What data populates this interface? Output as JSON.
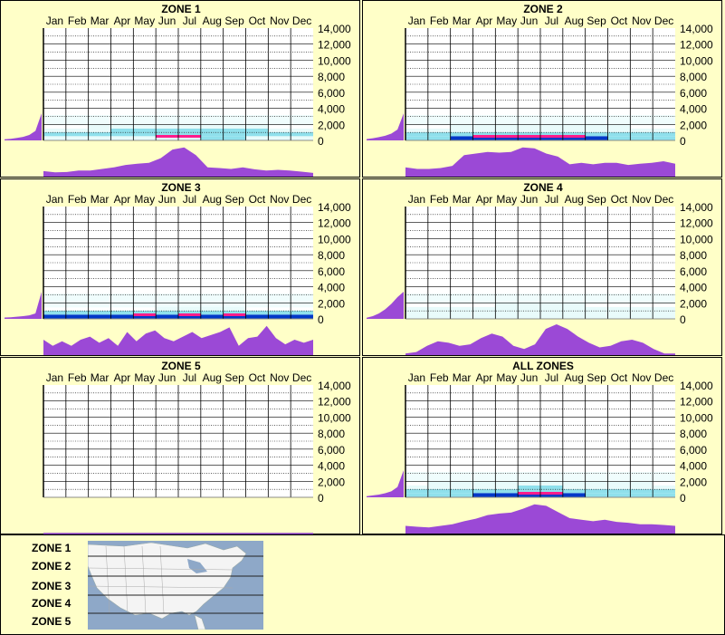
{
  "colors": {
    "background": "#ffffc8",
    "profile_fill": "#9b49d6",
    "grid": "#000000",
    "heat_low": "#e6fbfb",
    "heat_mid": "#8fe0ec",
    "heat_high": "#0038c8",
    "heat_peak": "#ff1c8c",
    "map_water": "#8ea8c8",
    "map_land": "#f4f4f4"
  },
  "chart_data": [
    {
      "type": "heatmap",
      "title": "ZONE 1",
      "categories": [
        "Jan",
        "Feb",
        "Mar",
        "Apr",
        "May",
        "Jun",
        "Jul",
        "Aug",
        "Sep",
        "Oct",
        "Nov",
        "Dec"
      ],
      "y_ticks": [
        "14,000",
        "12,000",
        "10,000",
        "8,000",
        "6,000",
        "4,000",
        "2,000",
        "0"
      ],
      "ylim": [
        0,
        14000
      ],
      "elevation_distribution": [
        0.04,
        0.06,
        0.09,
        0.13,
        0.2,
        0.35,
        1.0
      ],
      "seasonal_profile": [
        0.18,
        0.14,
        0.15,
        0.2,
        0.2,
        0.25,
        0.3,
        0.38,
        0.42,
        0.45,
        0.6,
        0.88,
        0.95,
        0.7,
        0.3,
        0.28,
        0.25,
        0.3,
        0.24,
        0.2,
        0.22,
        0.2,
        0.16,
        0.12
      ],
      "heat": {
        "layers": [
          [
            1,
            1,
            1,
            1,
            1,
            1,
            1,
            2,
            2,
            1,
            1,
            1
          ],
          [
            2,
            2,
            2,
            2,
            2,
            2,
            2,
            2,
            2,
            2,
            2,
            2
          ],
          [
            1,
            1,
            1,
            2,
            2,
            2,
            2,
            2,
            2,
            2,
            1,
            1
          ],
          [
            0,
            0,
            1,
            1,
            1,
            1,
            1,
            1,
            1,
            1,
            0,
            0
          ]
        ],
        "peak_months": [
          5,
          6
        ]
      }
    },
    {
      "type": "heatmap",
      "title": "ZONE 2",
      "categories": [
        "Jan",
        "Feb",
        "Mar",
        "Apr",
        "May",
        "Jun",
        "Jul",
        "Aug",
        "Sep",
        "Oct",
        "Nov",
        "Dec"
      ],
      "y_ticks": [
        "14,000",
        "12,000",
        "10,000",
        "8,000",
        "6,000",
        "4,000",
        "2,000",
        "0"
      ],
      "ylim": [
        0,
        14000
      ],
      "elevation_distribution": [
        0.05,
        0.08,
        0.12,
        0.17,
        0.25,
        0.4,
        1.0
      ],
      "seasonal_profile": [
        0.3,
        0.25,
        0.25,
        0.28,
        0.35,
        0.7,
        0.75,
        0.8,
        0.78,
        0.8,
        0.95,
        0.92,
        0.75,
        0.65,
        0.4,
        0.45,
        0.4,
        0.45,
        0.45,
        0.38,
        0.42,
        0.45,
        0.5,
        0.42
      ],
      "heat": {
        "layers": [
          [
            2,
            2,
            3,
            3,
            3,
            3,
            3,
            3,
            3,
            2,
            2,
            2
          ],
          [
            2,
            2,
            2,
            2,
            2,
            2,
            2,
            2,
            2,
            2,
            2,
            2
          ],
          [
            1,
            1,
            1,
            1,
            1,
            1,
            1,
            1,
            1,
            1,
            1,
            1
          ],
          [
            0,
            0,
            1,
            1,
            1,
            1,
            1,
            1,
            1,
            1,
            0,
            0
          ]
        ],
        "peak_months": [
          3,
          4,
          5,
          6,
          7
        ]
      }
    },
    {
      "type": "heatmap",
      "title": "ZONE 3",
      "categories": [
        "Jan",
        "Feb",
        "Mar",
        "Apr",
        "May",
        "Jun",
        "Jul",
        "Aug",
        "Sep",
        "Oct",
        "Nov",
        "Dec"
      ],
      "y_ticks": [
        "14,000",
        "12,000",
        "10,000",
        "8,000",
        "6,000",
        "4,000",
        "2,000",
        "0"
      ],
      "ylim": [
        0,
        14000
      ],
      "elevation_distribution": [
        0.05,
        0.06,
        0.08,
        0.1,
        0.13,
        0.2,
        1.0
      ],
      "seasonal_profile": [
        0.5,
        0.3,
        0.45,
        0.3,
        0.5,
        0.6,
        0.4,
        0.55,
        0.3,
        0.75,
        0.45,
        0.7,
        0.8,
        0.55,
        0.45,
        0.6,
        0.75,
        0.55,
        0.65,
        0.75,
        0.9,
        0.3,
        0.55,
        0.6,
        0.95,
        0.55,
        0.35,
        0.5,
        0.4,
        0.5
      ],
      "heat": {
        "layers": [
          [
            3,
            3,
            3,
            3,
            3,
            3,
            3,
            3,
            3,
            3,
            3,
            3
          ],
          [
            2,
            2,
            2,
            2,
            2,
            2,
            2,
            2,
            2,
            2,
            2,
            2
          ],
          [
            0,
            0,
            0,
            0,
            0,
            1,
            1,
            1,
            1,
            0,
            0,
            0
          ]
        ],
        "peak_months": [
          4,
          6,
          8
        ]
      }
    },
    {
      "type": "heatmap",
      "title": "ZONE 4",
      "categories": [
        "Jan",
        "Feb",
        "Mar",
        "Apr",
        "May",
        "Jun",
        "Jul",
        "Aug",
        "Sep",
        "Oct",
        "Nov",
        "Dec"
      ],
      "y_ticks": [
        "14,000",
        "12,000",
        "10,000",
        "8,000",
        "6,000",
        "4,000",
        "2,000",
        "0"
      ],
      "ylim": [
        0,
        14000
      ],
      "elevation_distribution": [
        0.04,
        0.1,
        0.2,
        0.35,
        0.55,
        0.8,
        1.0
      ],
      "seasonal_profile": [
        0.05,
        0.1,
        0.3,
        0.45,
        0.4,
        0.3,
        0.35,
        0.55,
        0.7,
        0.6,
        0.3,
        0.2,
        0.35,
        0.85,
        1.0,
        0.85,
        0.6,
        0.4,
        0.25,
        0.3,
        0.45,
        0.5,
        0.4,
        0.2,
        0.05,
        0.05
      ],
      "heat": {
        "layers": [
          [
            1,
            1,
            1,
            1,
            1,
            1,
            1,
            1,
            1,
            1,
            1,
            1
          ],
          [
            1,
            1,
            1,
            1,
            1,
            1,
            1,
            1,
            1,
            1,
            1,
            1
          ],
          [
            1,
            1,
            1,
            1,
            1,
            1,
            1,
            1,
            1,
            1,
            1,
            1
          ],
          [
            0,
            0,
            0,
            0,
            1,
            1,
            1,
            1,
            0,
            0,
            0,
            0
          ]
        ],
        "peak_months": []
      }
    },
    {
      "type": "heatmap",
      "title": "ZONE 5",
      "categories": [
        "Jan",
        "Feb",
        "Mar",
        "Apr",
        "May",
        "Jun",
        "Jul",
        "Aug",
        "Sep",
        "Oct",
        "Nov",
        "Dec"
      ],
      "y_ticks": [
        "14,000",
        "12,000",
        "10,000",
        "8,000",
        "6,000",
        "4,000",
        "2,000",
        "0"
      ],
      "ylim": [
        0,
        14000
      ],
      "elevation_distribution": [],
      "seasonal_profile": [],
      "heat": {
        "layers": [],
        "peak_months": []
      }
    },
    {
      "type": "heatmap",
      "title": "ALL ZONES",
      "categories": [
        "Jan",
        "Feb",
        "Mar",
        "Apr",
        "May",
        "Jun",
        "Jul",
        "Aug",
        "Sep",
        "Oct",
        "Nov",
        "Dec"
      ],
      "y_ticks": [
        "14,000",
        "12,000",
        "10,000",
        "8,000",
        "6,000",
        "4,000",
        "2,000",
        "0"
      ],
      "ylim": [
        0,
        14000
      ],
      "elevation_distribution": [
        0.04,
        0.07,
        0.1,
        0.15,
        0.22,
        0.38,
        1.0
      ],
      "seasonal_profile": [
        0.25,
        0.22,
        0.2,
        0.25,
        0.3,
        0.4,
        0.48,
        0.6,
        0.65,
        0.68,
        0.8,
        0.95,
        0.9,
        0.7,
        0.5,
        0.45,
        0.4,
        0.45,
        0.38,
        0.35,
        0.3,
        0.3,
        0.28,
        0.25
      ],
      "heat": {
        "layers": [
          [
            2,
            2,
            2,
            3,
            3,
            3,
            3,
            3,
            2,
            2,
            2,
            2
          ],
          [
            2,
            2,
            2,
            2,
            2,
            2,
            2,
            2,
            2,
            2,
            2,
            2
          ],
          [
            1,
            1,
            1,
            1,
            1,
            2,
            2,
            1,
            1,
            1,
            1,
            1
          ],
          [
            0,
            1,
            1,
            1,
            1,
            1,
            1,
            1,
            1,
            1,
            1,
            0
          ]
        ],
        "peak_months": [
          5,
          6
        ]
      }
    }
  ],
  "legend": {
    "zones": [
      "ZONE 1",
      "ZONE 2",
      "ZONE 3",
      "ZONE 4",
      "ZONE 5"
    ]
  }
}
